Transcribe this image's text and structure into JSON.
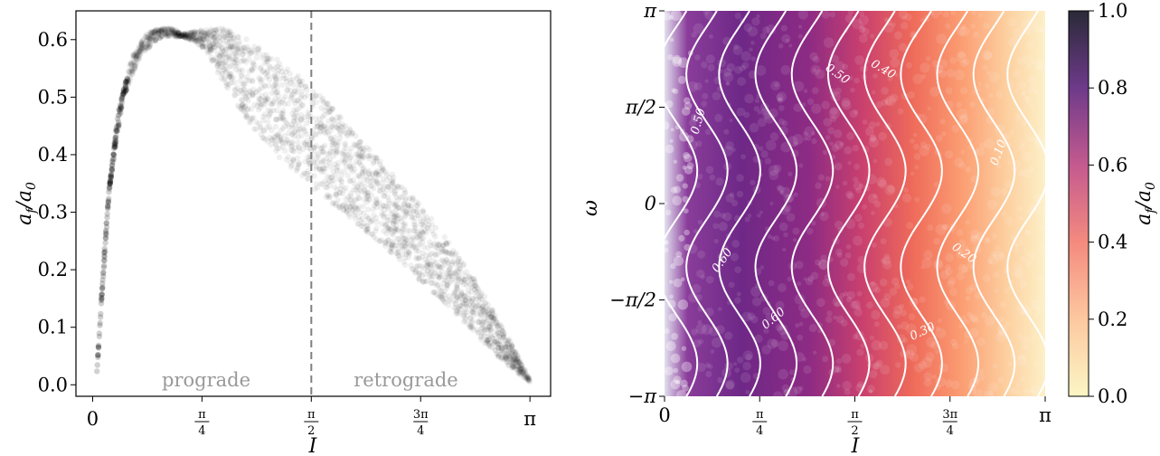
{
  "chart_data": [
    {
      "type": "scatter",
      "xlabel": "I",
      "ylabel": "a_f/a_0",
      "xlim": [
        -0.12,
        3.29
      ],
      "ylim": [
        -0.02,
        0.65
      ],
      "xticks": [
        {
          "value": 0,
          "label": "0"
        },
        {
          "value": 0.7854,
          "label": "π/4"
        },
        {
          "value": 1.5708,
          "label": "π/2"
        },
        {
          "value": 2.3562,
          "label": "3π/4"
        },
        {
          "value": 3.1416,
          "label": "π"
        }
      ],
      "yticks": [
        {
          "value": 0.0,
          "label": "0.0"
        },
        {
          "value": 0.1,
          "label": "0.1"
        },
        {
          "value": 0.2,
          "label": "0.2"
        },
        {
          "value": 0.3,
          "label": "0.3"
        },
        {
          "value": 0.4,
          "label": "0.4"
        },
        {
          "value": 0.5,
          "label": "0.5"
        },
        {
          "value": 0.6,
          "label": "0.6"
        }
      ],
      "vline": 1.5708,
      "annotations": [
        "prograde",
        "retrograde"
      ],
      "band_upper": [
        {
          "x": 0.03,
          "y": 0.02
        },
        {
          "x": 0.1,
          "y": 0.3
        },
        {
          "x": 0.18,
          "y": 0.47
        },
        {
          "x": 0.28,
          "y": 0.57
        },
        {
          "x": 0.4,
          "y": 0.615
        },
        {
          "x": 0.55,
          "y": 0.622
        },
        {
          "x": 0.65,
          "y": 0.61
        },
        {
          "x": 0.8,
          "y": 0.618
        },
        {
          "x": 0.95,
          "y": 0.62
        },
        {
          "x": 1.1,
          "y": 0.605
        },
        {
          "x": 1.3,
          "y": 0.57
        },
        {
          "x": 1.57,
          "y": 0.52
        },
        {
          "x": 1.8,
          "y": 0.46
        },
        {
          "x": 2.1,
          "y": 0.38
        },
        {
          "x": 2.4,
          "y": 0.3
        },
        {
          "x": 2.7,
          "y": 0.2
        },
        {
          "x": 2.95,
          "y": 0.1
        },
        {
          "x": 3.14,
          "y": 0.01
        }
      ],
      "band_lower": [
        {
          "x": 0.03,
          "y": 0.02
        },
        {
          "x": 0.12,
          "y": 0.34
        },
        {
          "x": 0.22,
          "y": 0.5
        },
        {
          "x": 0.35,
          "y": 0.575
        },
        {
          "x": 0.5,
          "y": 0.605
        },
        {
          "x": 0.65,
          "y": 0.605
        },
        {
          "x": 0.8,
          "y": 0.585
        },
        {
          "x": 1.0,
          "y": 0.5
        },
        {
          "x": 1.2,
          "y": 0.43
        },
        {
          "x": 1.4,
          "y": 0.38
        },
        {
          "x": 1.57,
          "y": 0.345
        },
        {
          "x": 1.8,
          "y": 0.3
        },
        {
          "x": 2.1,
          "y": 0.24
        },
        {
          "x": 2.4,
          "y": 0.17
        },
        {
          "x": 2.7,
          "y": 0.1
        },
        {
          "x": 2.95,
          "y": 0.04
        },
        {
          "x": 3.14,
          "y": 0.005
        }
      ]
    },
    {
      "type": "heatmap",
      "xlabel": "I",
      "ylabel": "ω",
      "xlim": [
        0,
        3.1416
      ],
      "ylim": [
        -3.1416,
        3.1416
      ],
      "xticks": [
        {
          "value": 0,
          "label": "0"
        },
        {
          "value": 0.7854,
          "label": "π/4"
        },
        {
          "value": 1.5708,
          "label": "π/2"
        },
        {
          "value": 2.3562,
          "label": "3π/4"
        },
        {
          "value": 3.1416,
          "label": "π"
        }
      ],
      "yticks": [
        {
          "value": -3.1416,
          "label": "−π"
        },
        {
          "value": -1.5708,
          "label": "−π/2"
        },
        {
          "value": 0,
          "label": "0"
        },
        {
          "value": 1.5708,
          "label": "π/2"
        },
        {
          "value": 3.1416,
          "label": "π"
        }
      ],
      "contour_labels": [
        "0.60",
        "0.60",
        "0.50",
        "0.50",
        "0.40",
        "0.30",
        "0.20",
        "0.10"
      ],
      "colorbar": {
        "label": "a_f/a_0",
        "range": [
          0.0,
          1.0
        ],
        "ticks": [
          "0.0",
          "0.2",
          "0.4",
          "0.6",
          "0.8",
          "1.0"
        ],
        "colormap": "magma_r",
        "colors": [
          "#fcfdbf",
          "#feb078",
          "#f1605d",
          "#b5367a",
          "#721f81",
          "#2c115f",
          "#000004"
        ]
      }
    }
  ],
  "labels": {
    "left_ylabel_main": "a",
    "left_ylabel_sub1": "f",
    "left_ylabel_mid": "/a",
    "left_ylabel_sub2": "0",
    "left_xlabel": "I",
    "right_xlabel": "I",
    "right_ylabel": "ω",
    "prograde": "prograde",
    "retrograde": "retrograde",
    "cbar_main": "a",
    "cbar_sub1": "f",
    "cbar_mid": "/a",
    "cbar_sub2": "0"
  }
}
